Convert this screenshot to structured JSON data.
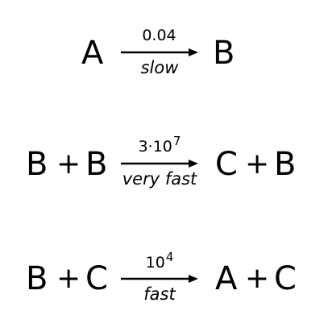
{
  "reactions": [
    {
      "reactants": [
        "A"
      ],
      "products": [
        "B"
      ],
      "rate_base": "0.04",
      "rate_exponent": "",
      "speed": "slow"
    },
    {
      "reactants": [
        "B",
        "B"
      ],
      "products": [
        "C",
        "B"
      ],
      "rate_base": "3·10",
      "rate_exponent": "7",
      "speed": "very fast"
    },
    {
      "reactants": [
        "B",
        "C"
      ],
      "products": [
        "A",
        "C"
      ],
      "rate_base": "10",
      "rate_exponent": "4",
      "speed": "fast"
    }
  ],
  "plus_symbol": "+"
}
